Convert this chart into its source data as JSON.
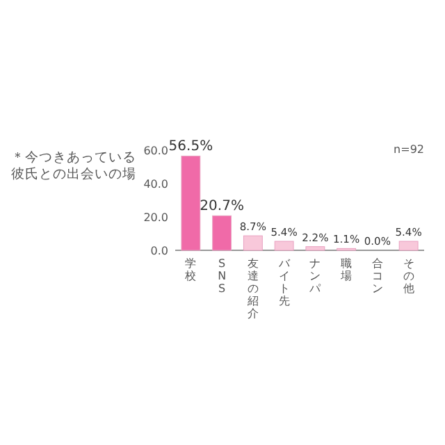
{
  "chart_data": {
    "type": "bar",
    "title": "＊今つきあっている彼氏との出会いの場",
    "categories": [
      "学校",
      "SNS",
      "友達の紹介",
      "バイト先",
      "ナンパ",
      "職場",
      "合コン",
      "その他"
    ],
    "values": [
      56.5,
      20.7,
      8.7,
      5.4,
      2.2,
      1.1,
      0.0,
      5.4
    ],
    "colors": [
      "#f06aa8",
      "#f06aa8",
      "#f8c8da",
      "#f8c8da",
      "#f8c8da",
      "#f8c8da",
      "#f8c8da",
      "#f8c8da"
    ],
    "value_labels": [
      "56.5%",
      "20.7%",
      "8.7%",
      "5.4%",
      "2.2%",
      "1.1%",
      "0.0%",
      "5.4%"
    ],
    "ylim": [
      0,
      60
    ],
    "yticks": [
      {
        "value": 0,
        "label": "0.0"
      },
      {
        "value": 20,
        "label": "20.0"
      },
      {
        "value": 40,
        "label": "40.0"
      },
      {
        "value": 60,
        "label": "60.0"
      }
    ],
    "annotations": [
      "n=92"
    ],
    "grid": false
  }
}
